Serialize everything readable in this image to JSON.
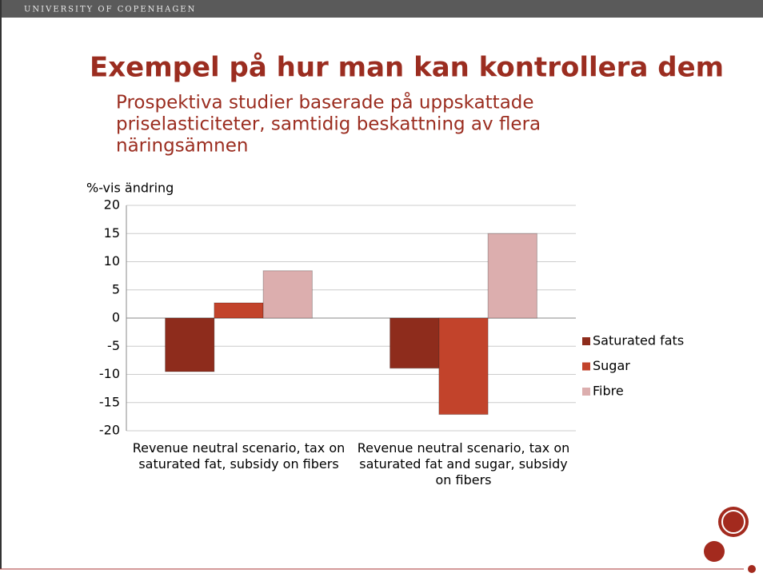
{
  "header": "UNIVERSITY OF COPENHAGEN",
  "title": "Exempel på hur man kan kontrollera dem",
  "subtitle": [
    "Prospektiva studier baserade på uppskattade",
    "priselasticiteter, samtidig beskattning av flera",
    "näringsämnen"
  ],
  "chart_data": {
    "type": "bar",
    "ylabel": "%-vis ändring",
    "categories": [
      "Revenue neutral scenario, tax on saturated fat, subsidy on fibers",
      "Revenue neutral scenario, tax on saturated fat and sugar, subsidy on fibers"
    ],
    "series": [
      {
        "name": "Saturated fats",
        "color": "#8e2c1c",
        "values": [
          -9.5,
          -8.9
        ]
      },
      {
        "name": "Sugar",
        "color": "#c2432b",
        "values": [
          2.7,
          -17.1
        ]
      },
      {
        "name": "Fibre",
        "color": "#dcaeae",
        "values": [
          8.4,
          15.0
        ]
      }
    ],
    "ylim": [
      -20,
      20
    ],
    "yticks": [
      -20,
      -15,
      -10,
      -5,
      0,
      5,
      10,
      15,
      20
    ],
    "grid": true,
    "legend": "right"
  }
}
